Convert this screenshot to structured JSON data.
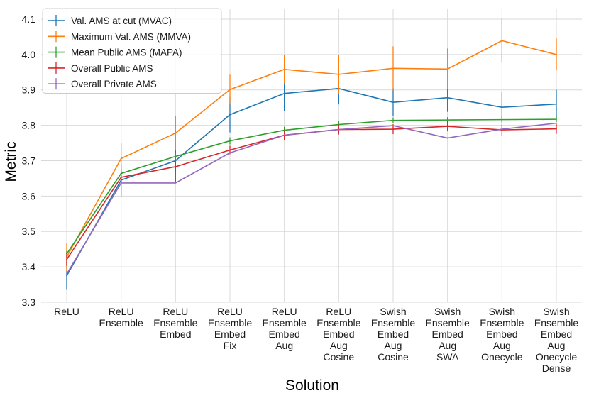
{
  "chart_data": {
    "type": "line",
    "title": "",
    "xlabel": "Solution",
    "ylabel": "Metric",
    "ylim": [
      3.3,
      4.15
    ],
    "yticks": [
      "3.3",
      "3.4",
      "3.5",
      "3.6",
      "3.7",
      "3.8",
      "3.9",
      "4.0",
      "4.1"
    ],
    "grid": true,
    "legend_position": "top-left",
    "categories": [
      [
        "ReLU"
      ],
      [
        "ReLU",
        "Ensemble"
      ],
      [
        "ReLU",
        "Ensemble",
        "Embed"
      ],
      [
        "ReLU",
        "Ensemble",
        "Embed",
        "Fix"
      ],
      [
        "ReLU",
        "Ensemble",
        "Embed",
        "Aug"
      ],
      [
        "ReLU",
        "Ensemble",
        "Embed",
        "Aug",
        "Cosine"
      ],
      [
        "Swish",
        "Ensemble",
        "Embed",
        "Aug",
        "Cosine"
      ],
      [
        "Swish",
        "Ensemble",
        "Embed",
        "Aug",
        "SWA"
      ],
      [
        "Swish",
        "Ensemble",
        "Embed",
        "Aug",
        "Onecycle"
      ],
      [
        "Swish",
        "Ensemble",
        "Embed",
        "Aug",
        "Onecycle",
        "Dense"
      ]
    ],
    "series": [
      {
        "name": "Val. AMS at cut (MVAC)",
        "color": "#1f77b4",
        "values": [
          3.375,
          3.645,
          3.7,
          3.83,
          3.89,
          3.904,
          3.865,
          3.878,
          3.851,
          3.86
        ],
        "errors": [
          0.04,
          0.045,
          0.06,
          0.05,
          0.05,
          0.045,
          0.04,
          0.04,
          0.045,
          0.04
        ]
      },
      {
        "name": "Maximum Val. AMS (MMVA)",
        "color": "#ff7f0e",
        "values": [
          3.428,
          3.706,
          3.778,
          3.901,
          3.958,
          3.944,
          3.961,
          3.959,
          4.039,
          4.0
        ],
        "errors": [
          0.04,
          0.045,
          0.048,
          0.042,
          0.04,
          0.055,
          0.062,
          0.058,
          0.062,
          0.045
        ]
      },
      {
        "name": "Mean Public AMS (MAPA)",
        "color": "#2ca02c",
        "values": [
          3.437,
          3.664,
          3.712,
          3.756,
          3.786,
          3.802,
          3.814,
          3.815,
          3.816,
          3.817
        ],
        "errors": [
          0.008,
          0.008,
          0.008,
          0.01,
          0.01,
          0.01,
          0.008,
          0.008,
          0.008,
          0.008
        ]
      },
      {
        "name": "Overall Public AMS",
        "color": "#d62728",
        "values": [
          3.421,
          3.653,
          3.683,
          3.73,
          3.772,
          3.788,
          3.789,
          3.797,
          3.787,
          3.79
        ],
        "errors": [
          0.018,
          0.012,
          0.012,
          0.012,
          0.014,
          0.014,
          0.014,
          0.014,
          0.016,
          0.014
        ]
      },
      {
        "name": "Overall Private AMS",
        "color": "#9467bd",
        "values": [
          3.38,
          3.637,
          3.637,
          3.722,
          3.772,
          3.788,
          3.799,
          3.764,
          3.789,
          3.806
        ],
        "errors": [
          0,
          0,
          0,
          0,
          0,
          0,
          0,
          0,
          0,
          0
        ]
      }
    ]
  }
}
